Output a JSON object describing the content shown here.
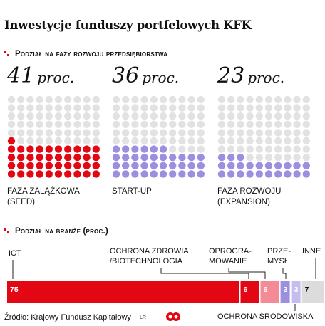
{
  "title": "Inwestycje funduszy portfelowych KFK",
  "section_stages": "Podział na fazy rozwoju przedsiębiorstwa",
  "section_industries": "Podział na branże (proc.)",
  "source": "Źródło: Krajowy Fundusz Kapitałowy",
  "credit": "ŁR",
  "colors": {
    "red": "#e30613",
    "red_light": "#f28b95",
    "purple": "#9c8fe0",
    "purple_light": "#c5bdf0",
    "gray_dot": "#e2e2e2",
    "gray_bar": "#dcdcdc"
  },
  "chart_data": [
    {
      "type": "waffle",
      "categories": [
        "FAZA ZALĄŻKOWA (SEED)",
        "START-UP",
        "FAZA ROZWOJU (EXPANSION)"
      ],
      "values": [
        41,
        36,
        23
      ],
      "unit": "proc.",
      "items": [
        {
          "value": "41",
          "unit": "proc.",
          "label_lines": [
            "FAZA ZALĄŻKOWA",
            "(SEED)"
          ],
          "color": "#e30613"
        },
        {
          "value": "36",
          "unit": "proc.",
          "label_lines": [
            "START-UP"
          ],
          "color": "#9c8fe0"
        },
        {
          "value": "23",
          "unit": "proc.",
          "label_lines": [
            "FAZA ROZWOJU",
            "(EXPANSION)"
          ],
          "color": "#9c8fe0"
        }
      ]
    },
    {
      "type": "bar",
      "orientation": "horizontal-stacked",
      "categories": [
        "ICT",
        "OCHRONA ZDROWIA /BIOTECHNOLOGIA",
        "OPROGRAMOWANIE",
        "PRZEMYSŁ",
        "OCHRONA ŚRODOWISKA",
        "INNE"
      ],
      "values": [
        75,
        6,
        6,
        3,
        3,
        7
      ],
      "items": [
        {
          "value": "75",
          "label_lines": [
            "ICT"
          ],
          "color": "#e30613"
        },
        {
          "value": "6",
          "label_lines": [
            "OCHRONA ZDROWIA",
            "/BIOTECHNOLOGIA"
          ],
          "color": "#e30613"
        },
        {
          "value": "6",
          "label_lines": [
            "OPROGRA-",
            "MOWANIE"
          ],
          "color": "#f28b95"
        },
        {
          "value": "3",
          "label_lines": [
            "PRZE-",
            "MYSŁ"
          ],
          "color": "#9c8fe0"
        },
        {
          "value": "3",
          "label_lines": [
            "OCHRONA ŚRODOWISKA"
          ],
          "color": "#c5bdf0"
        },
        {
          "value": "7",
          "label_lines": [
            "INNE"
          ],
          "color": "#dcdcdc"
        }
      ]
    }
  ]
}
